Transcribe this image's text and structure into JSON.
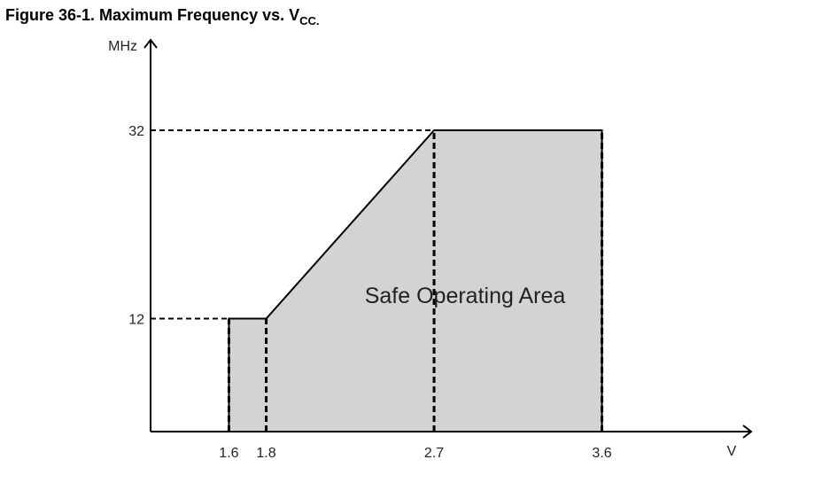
{
  "chart_data": {
    "type": "area",
    "title": "Figure 36-1. Maximum Frequency vs. V",
    "title_subscript": "CC.",
    "y_label": "MHz",
    "x_label": "V",
    "annotation": "Safe Operating Area",
    "x": [
      1.6,
      1.6,
      1.8,
      2.7,
      3.6,
      3.6
    ],
    "values": [
      0,
      12,
      12,
      32,
      32,
      0
    ],
    "color": "#d3d3d3",
    "xlim": [
      1.18,
      4.4
    ],
    "ylim": [
      0,
      41.6
    ],
    "xticks": [
      1.6,
      1.8,
      2.7,
      3.6
    ],
    "yticks": [
      12,
      32
    ]
  }
}
